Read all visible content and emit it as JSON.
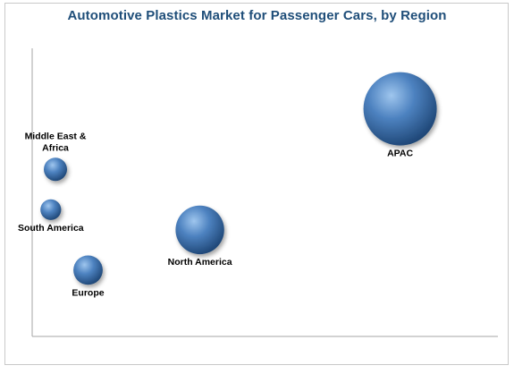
{
  "chart_data": {
    "type": "bubble",
    "title": "Automotive Plastics Market for Passenger Cars, by Region",
    "xlabel": "",
    "ylabel": "",
    "grid": false,
    "legend": "none",
    "bubble_color": "#3d6fa8",
    "points": [
      {
        "label": "Middle East &",
        "label2": "Africa",
        "x": 0.05,
        "y": 0.58,
        "size": 10
      },
      {
        "label": "South America",
        "label2": "",
        "x": 0.04,
        "y": 0.44,
        "size": 8
      },
      {
        "label": "Europe",
        "label2": "",
        "x": 0.12,
        "y": 0.23,
        "size": 16
      },
      {
        "label": "North America",
        "label2": "",
        "x": 0.36,
        "y": 0.37,
        "size": 44
      },
      {
        "label": "APAC",
        "label2": "",
        "x": 0.79,
        "y": 0.79,
        "size": 100
      }
    ]
  }
}
